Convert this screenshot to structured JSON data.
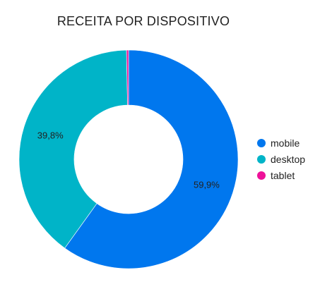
{
  "chart_data": {
    "type": "pie",
    "title": "RECEITA POR DISPOSITIVO",
    "donut": true,
    "categories": [
      "mobile",
      "desktop",
      "tablet"
    ],
    "values": [
      59.9,
      39.8,
      0.3
    ],
    "data_labels": [
      "59,9%",
      "39,8%",
      ""
    ],
    "colors": [
      "#0077ee",
      "#00b4c8",
      "#ee1199"
    ],
    "legend_position": "right"
  }
}
